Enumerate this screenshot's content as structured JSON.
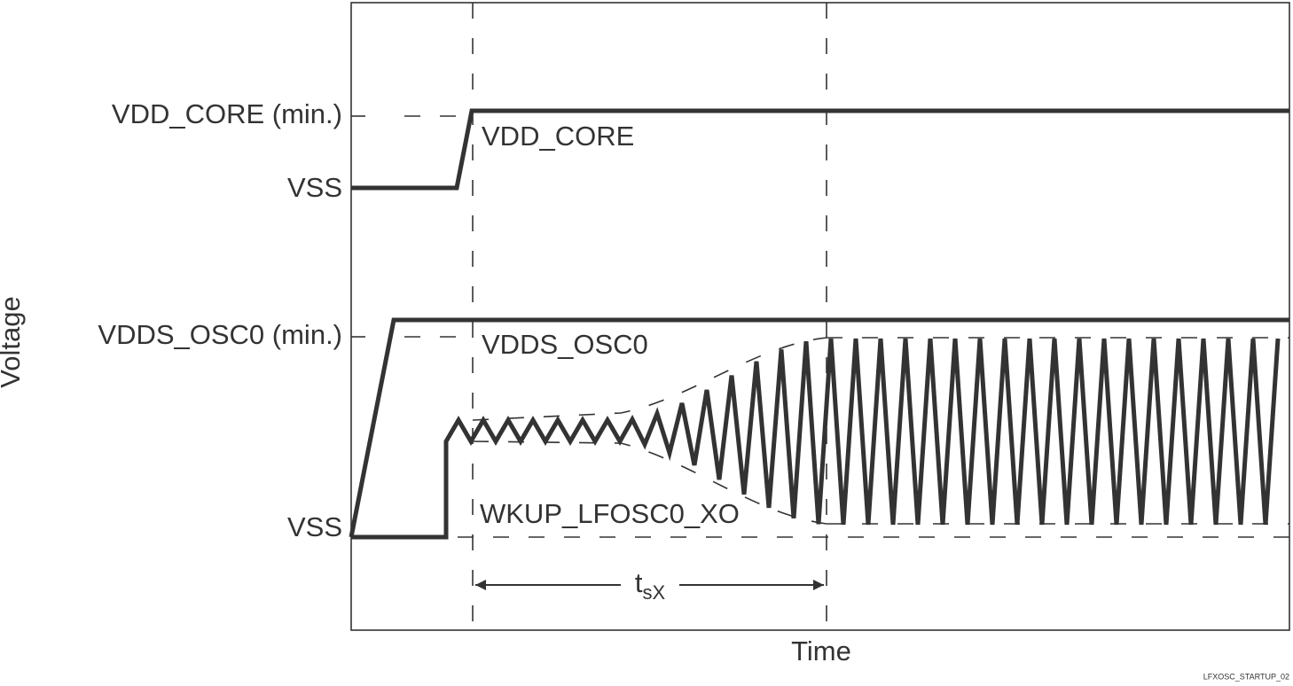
{
  "y_axis_label": "Voltage",
  "x_axis_label": "Time",
  "levels": [
    {
      "label": "VDD_CORE (min.)"
    },
    {
      "label": "VSS"
    },
    {
      "label": "VDDS_OSC0 (min.)"
    },
    {
      "label": "VSS"
    }
  ],
  "signals": [
    "VDD_CORE",
    "VDDS_OSC0",
    "WKUP_LFOSC0_XO"
  ],
  "interval": {
    "label": "t",
    "subscript": "sX"
  },
  "figure_id": "LFXOSC_STARTUP_02"
}
